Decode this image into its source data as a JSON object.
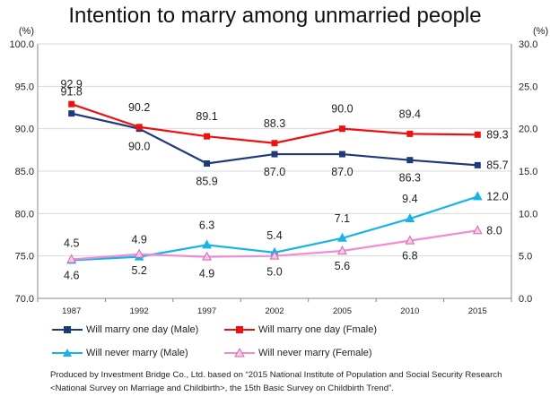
{
  "title": "Intention to marry among unmarried people",
  "source_text": "Produced by Investment Bridge Co., Ltd. based on “2015 National Institute of Population and Social Security Research <National Survey on Marriage and Childbirth>, the 15th Basic Survey on Childbirth Trend”.",
  "chart_data": {
    "type": "line",
    "title": "Intention to marry among unmarried people",
    "categories": [
      "1987",
      "1992",
      "1997",
      "2002",
      "2005",
      "2010",
      "2015"
    ],
    "left_axis": {
      "unit": "(%)",
      "min": 70,
      "max": 100,
      "ticks": [
        "70.0",
        "75.0",
        "80.0",
        "85.0",
        "90.0",
        "95.0",
        "100.0"
      ]
    },
    "right_axis": {
      "unit": "(%)",
      "min": 0,
      "max": 30,
      "ticks": [
        "0.0",
        "5.0",
        "10.0",
        "15.0",
        "20.0",
        "25.0",
        "30.0"
      ]
    },
    "grid": "horizontal",
    "legend_position": "bottom",
    "series": [
      {
        "name": "Will marry one day (Male)",
        "axis": "left",
        "color": "#1f3a7a",
        "marker": "square",
        "values": [
          91.8,
          90.0,
          85.9,
          87.0,
          87.0,
          86.3,
          85.7
        ],
        "labels": [
          "91.8",
          "90.0",
          "85.9",
          "87.0",
          "87.0",
          "86.3",
          "85.7"
        ]
      },
      {
        "name": "Will marry one day (Fmale)",
        "axis": "left",
        "color": "#ee1111",
        "marker": "square",
        "values": [
          92.9,
          90.2,
          89.1,
          88.3,
          90.0,
          89.4,
          89.3
        ],
        "labels": [
          "92.9",
          "90.2",
          "89.1",
          "88.3",
          "90.0",
          "89.4",
          "89.3"
        ]
      },
      {
        "name": "Will never marry (Male)",
        "axis": "right",
        "color": "#18b4e8",
        "marker": "triangle",
        "values": [
          4.5,
          4.9,
          6.3,
          5.4,
          7.1,
          9.4,
          12.0
        ],
        "labels": [
          "4.5",
          "4.9",
          "6.3",
          "5.4",
          "7.1",
          "9.4",
          "12.0"
        ]
      },
      {
        "name": "Will never marry (Female)",
        "axis": "right",
        "color": "#f28cd2",
        "marker": "triangle",
        "values": [
          4.6,
          5.2,
          4.9,
          5.0,
          5.6,
          6.8,
          8.0
        ],
        "labels": [
          "4.6",
          "5.2",
          "4.9",
          "5.0",
          "5.6",
          "6.8",
          "8.0"
        ]
      }
    ]
  }
}
